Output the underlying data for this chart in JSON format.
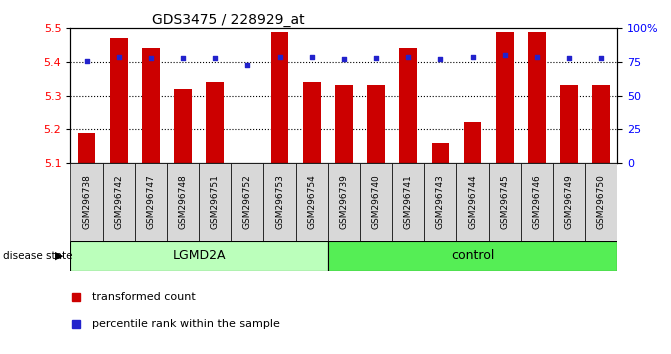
{
  "title": "GDS3475 / 228929_at",
  "samples": [
    "GSM296738",
    "GSM296742",
    "GSM296747",
    "GSM296748",
    "GSM296751",
    "GSM296752",
    "GSM296753",
    "GSM296754",
    "GSM296739",
    "GSM296740",
    "GSM296741",
    "GSM296743",
    "GSM296744",
    "GSM296745",
    "GSM296746",
    "GSM296749",
    "GSM296750"
  ],
  "transformed_count": [
    5.19,
    5.47,
    5.44,
    5.32,
    5.34,
    5.1,
    5.49,
    5.34,
    5.33,
    5.33,
    5.44,
    5.16,
    5.22,
    5.49,
    5.49,
    5.33,
    5.33
  ],
  "percentile_rank": [
    76,
    79,
    78,
    78,
    78,
    73,
    79,
    79,
    77,
    78,
    79,
    77,
    79,
    80,
    79,
    78,
    78
  ],
  "group": [
    "LGMD2A",
    "LGMD2A",
    "LGMD2A",
    "LGMD2A",
    "LGMD2A",
    "LGMD2A",
    "LGMD2A",
    "LGMD2A",
    "control",
    "control",
    "control",
    "control",
    "control",
    "control",
    "control",
    "control",
    "control"
  ],
  "ylim": [
    5.1,
    5.5
  ],
  "yticks": [
    5.1,
    5.2,
    5.3,
    5.4,
    5.5
  ],
  "percentile_yticks": [
    0,
    25,
    50,
    75,
    100
  ],
  "percentile_yticklabels": [
    "0",
    "25",
    "50",
    "75",
    "100%"
  ],
  "bar_color": "#cc0000",
  "dot_color": "#2222cc",
  "lgmd2a_color": "#bbffbb",
  "control_color": "#55ee55",
  "label_bg_color": "#d8d8d8",
  "bar_bottom": 5.1,
  "group_boundary": 8,
  "n_lgmd2a": 8,
  "n_control": 9
}
